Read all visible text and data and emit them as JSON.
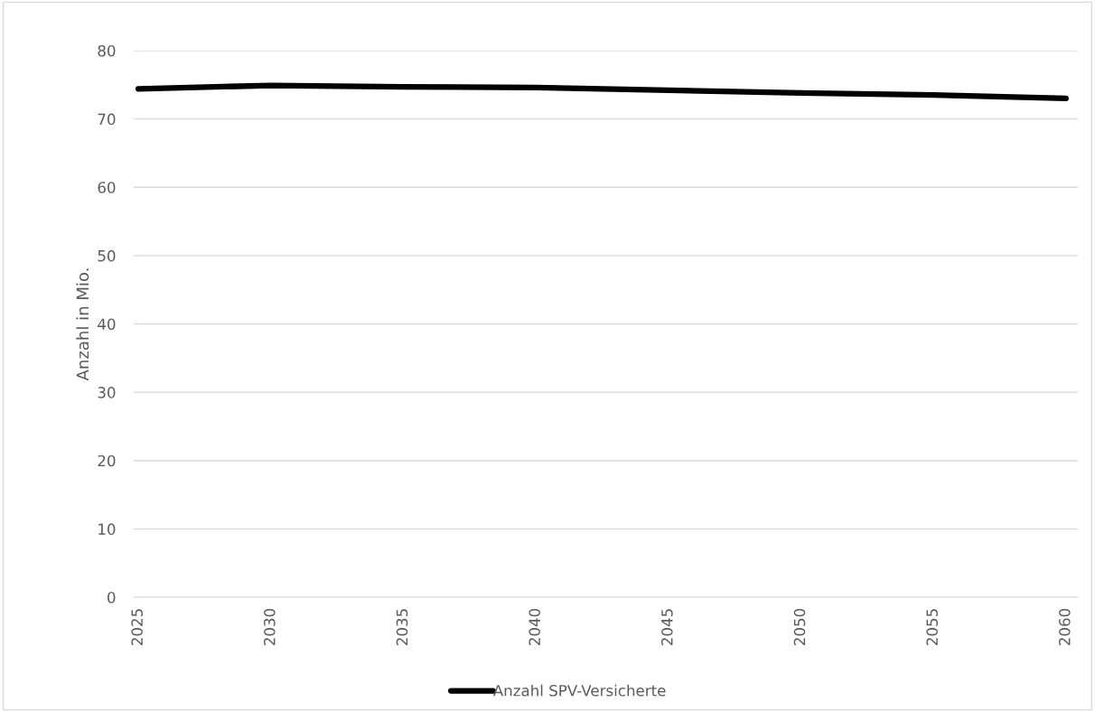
{
  "chart_data": {
    "type": "line",
    "ylabel": "Anzahl in Mio.",
    "categories": [
      "2025",
      "2030",
      "2035",
      "2040",
      "2045",
      "2050",
      "2055",
      "2060"
    ],
    "series": [
      {
        "name": "Anzahl SPV-Versicherte",
        "color": "#000000",
        "values": [
          74.4,
          74.9,
          74.7,
          74.6,
          74.2,
          73.8,
          73.5,
          73.0
        ]
      }
    ],
    "ylim": [
      0,
      80
    ],
    "yticks": [
      0,
      10,
      20,
      30,
      40,
      50,
      60,
      70,
      80
    ],
    "grid": "y",
    "legend": "bottom",
    "marker": "none",
    "line_style": "solid"
  }
}
